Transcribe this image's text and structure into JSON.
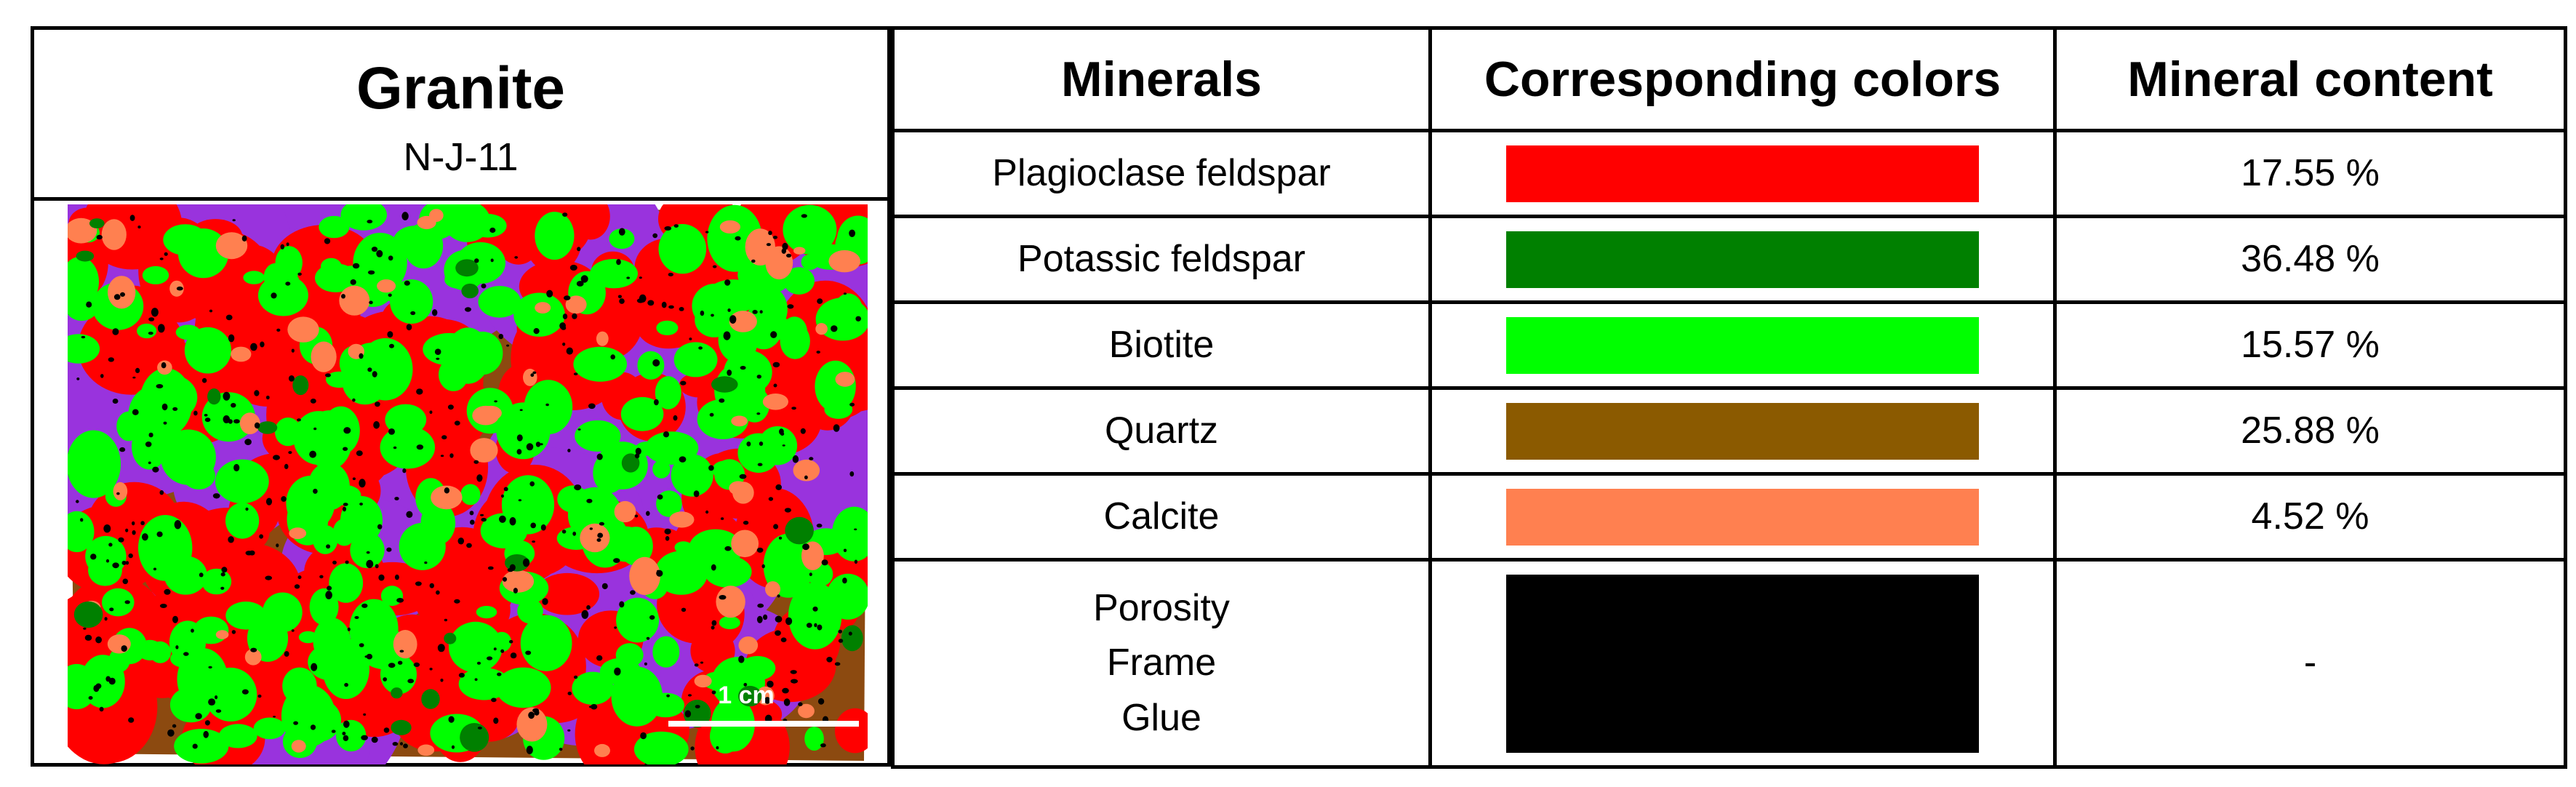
{
  "sample": {
    "title": "Granite",
    "id": "N-J-11",
    "scale_label": "1 cm"
  },
  "table": {
    "headers": [
      "Minerals",
      "Corresponding colors",
      "Mineral content"
    ],
    "rows": [
      {
        "mineral": "Plagioclase feldspar",
        "color": "#ff0000",
        "content": "17.55 %"
      },
      {
        "mineral": "Potassic feldspar",
        "color": "#008000",
        "content": "36.48 %"
      },
      {
        "mineral": "Biotite",
        "color": "#00ff00",
        "content": "15.57 %"
      },
      {
        "mineral": "Quartz",
        "color": "#8b5a00",
        "content": "25.88 %"
      },
      {
        "mineral": "Calcite",
        "color": "#ff8050",
        "content": "4.52 %"
      },
      {
        "mineral_lines": [
          "Porosity",
          "Frame",
          "Glue"
        ],
        "color": "#000000",
        "content": "-"
      }
    ]
  },
  "map_colors": {
    "background": "#8c4a10",
    "dominant": "#9933dd",
    "speckle": "#000000"
  }
}
